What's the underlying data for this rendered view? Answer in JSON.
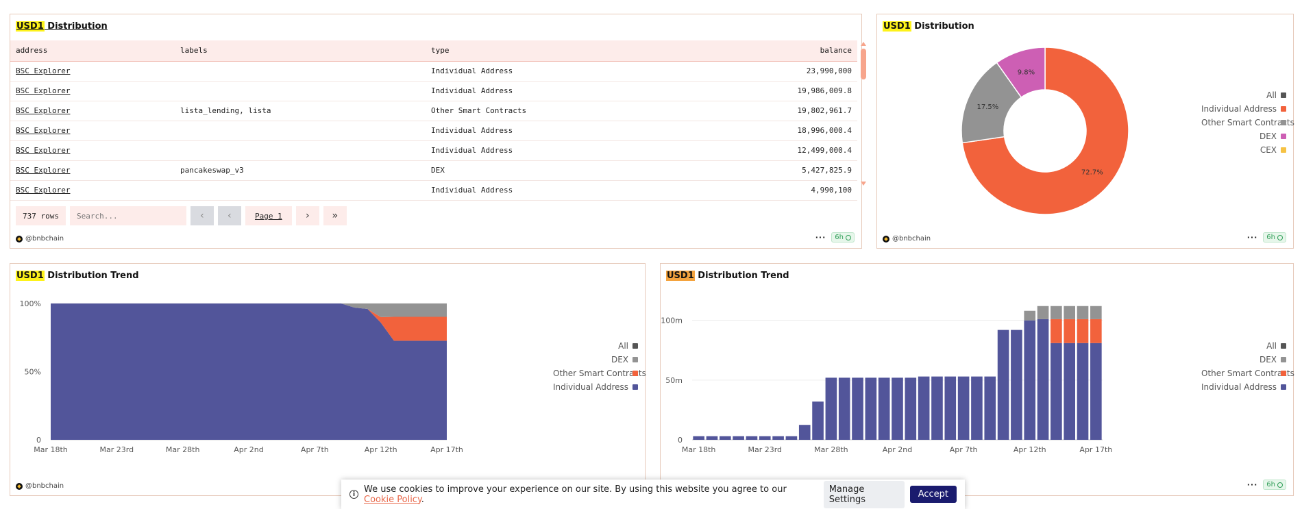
{
  "panels": {
    "table_panel": {
      "title_hl": "USD1",
      "title_rest": " Distribution",
      "columns": [
        "address",
        "labels",
        "type",
        "balance"
      ],
      "rows": [
        {
          "address": "BSC Explorer",
          "labels": "",
          "type": "Individual Address",
          "balance": "23,990,000"
        },
        {
          "address": "BSC Explorer",
          "labels": "",
          "type": "Individual Address",
          "balance": "19,986,009.8"
        },
        {
          "address": "BSC Explorer",
          "labels": "lista_lending, lista",
          "type": "Other Smart Contracts",
          "balance": "19,802,961.7"
        },
        {
          "address": "BSC Explorer",
          "labels": "",
          "type": "Individual Address",
          "balance": "18,996,000.4"
        },
        {
          "address": "BSC Explorer",
          "labels": "",
          "type": "Individual Address",
          "balance": "12,499,000.4"
        },
        {
          "address": "BSC Explorer",
          "labels": "pancakeswap_v3",
          "type": "DEX",
          "balance": "5,427,825.9"
        },
        {
          "address": "BSC Explorer",
          "labels": "",
          "type": "Individual Address",
          "balance": "4,990,100"
        }
      ],
      "row_count": "737 rows",
      "search_placeholder": "Search...",
      "page_label": "Page 1",
      "user": "@bnbchain",
      "age": "6h"
    },
    "pie_panel": {
      "title_hl": "USD1",
      "title_rest": " Distribution",
      "user": "@bnbchain",
      "age": "6h"
    },
    "area_panel": {
      "title_hl": "USD1",
      "title_rest": " Distribution Trend",
      "user": "@bnbchain"
    },
    "bar_panel": {
      "title_hl": "USD1",
      "title_rest": " Distribution Trend",
      "age": "6h"
    }
  },
  "chart_data": [
    {
      "type": "pie",
      "labels": [
        "Individual Address",
        "Other Smart Contracts",
        "DEX",
        "CEX"
      ],
      "values": [
        72.7,
        17.5,
        9.8,
        0
      ],
      "slice_labels": [
        "72.7%",
        "17.5%",
        "9.8%",
        ""
      ],
      "colors": [
        "#f2623c",
        "#939393",
        "#cd5fb4",
        "#f6c244"
      ],
      "legend": [
        {
          "label": "All",
          "color": "#555555"
        },
        {
          "label": "Individual Address",
          "color": "#f2623c"
        },
        {
          "label": "Other Smart Contracts",
          "color": "#939393"
        },
        {
          "label": "DEX",
          "color": "#cd5fb4"
        },
        {
          "label": "CEX",
          "color": "#f6c244"
        }
      ],
      "legend_position": "right"
    },
    {
      "type": "area",
      "stacked_percent": true,
      "x": [
        "Mar 18",
        "Mar 19",
        "Mar 20",
        "Mar 21",
        "Mar 22",
        "Mar 23",
        "Mar 24",
        "Mar 25",
        "Mar 26",
        "Mar 27",
        "Mar 28",
        "Mar 29",
        "Mar 30",
        "Mar 31",
        "Apr 1",
        "Apr 2",
        "Apr 3",
        "Apr 4",
        "Apr 5",
        "Apr 6",
        "Apr 7",
        "Apr 8",
        "Apr 9",
        "Apr 10",
        "Apr 11",
        "Apr 12",
        "Apr 13",
        "Apr 14",
        "Apr 15",
        "Apr 16",
        "Apr 17"
      ],
      "x_tick_labels": [
        "Mar 18th",
        "Mar 23rd",
        "Mar 28th",
        "Apr 2nd",
        "Apr 7th",
        "Apr 12th",
        "Apr 17th"
      ],
      "x_tick_index": [
        0,
        5,
        10,
        15,
        20,
        25,
        30
      ],
      "series": [
        {
          "name": "Individual Address",
          "color": "#52559a",
          "values": [
            100,
            100,
            100,
            100,
            100,
            100,
            100,
            100,
            100,
            100,
            100,
            100,
            100,
            100,
            100,
            100,
            100,
            100,
            100,
            100,
            100,
            100,
            100,
            97,
            96,
            86,
            72.7,
            72.7,
            72.7,
            72.7,
            72.7
          ]
        },
        {
          "name": "Other Smart Contracts",
          "color": "#f2623c",
          "values": [
            0,
            0,
            0,
            0,
            0,
            0,
            0,
            0,
            0,
            0,
            0,
            0,
            0,
            0,
            0,
            0,
            0,
            0,
            0,
            0,
            0,
            0,
            0,
            0,
            0,
            4,
            17.5,
            17.5,
            17.5,
            17.5,
            17.5
          ]
        },
        {
          "name": "DEX",
          "color": "#939393",
          "values": [
            0,
            0,
            0,
            0,
            0,
            0,
            0,
            0,
            0,
            0,
            0,
            0,
            0,
            0,
            0,
            0,
            0,
            0,
            0,
            0,
            0,
            0,
            0,
            3,
            4,
            10,
            9.8,
            9.8,
            9.8,
            9.8,
            9.8
          ]
        }
      ],
      "y_ticks": [
        "0",
        "50%",
        "100%"
      ],
      "ylim": [
        0,
        100
      ],
      "legend": [
        {
          "label": "All",
          "color": "#555555"
        },
        {
          "label": "DEX",
          "color": "#939393"
        },
        {
          "label": "Other Smart Contracts",
          "color": "#f2623c"
        },
        {
          "label": "Individual Address",
          "color": "#52559a"
        }
      ],
      "legend_position": "right"
    },
    {
      "type": "bar",
      "stacked": true,
      "x": [
        "Mar 18",
        "Mar 19",
        "Mar 20",
        "Mar 21",
        "Mar 22",
        "Mar 23",
        "Mar 24",
        "Mar 25",
        "Mar 26",
        "Mar 27",
        "Mar 28",
        "Mar 29",
        "Mar 30",
        "Mar 31",
        "Apr 1",
        "Apr 2",
        "Apr 3",
        "Apr 4",
        "Apr 5",
        "Apr 6",
        "Apr 7",
        "Apr 8",
        "Apr 9",
        "Apr 10",
        "Apr 11",
        "Apr 12",
        "Apr 13",
        "Apr 14",
        "Apr 15",
        "Apr 16",
        "Apr 17"
      ],
      "x_tick_labels": [
        "Mar 18th",
        "Mar 23rd",
        "Mar 28th",
        "Apr 2nd",
        "Apr 7th",
        "Apr 12th",
        "Apr 17th"
      ],
      "x_tick_index": [
        0,
        5,
        10,
        15,
        20,
        25,
        30
      ],
      "series": [
        {
          "name": "Individual Address",
          "color": "#52559a",
          "values": [
            3,
            3,
            3,
            3,
            3,
            3,
            3,
            3,
            12.5,
            32,
            52,
            52,
            52,
            52,
            52,
            52,
            52,
            53,
            53,
            53,
            53,
            53,
            53,
            92,
            92,
            100,
            101,
            81,
            81,
            81,
            81
          ]
        },
        {
          "name": "Other Smart Contracts",
          "color": "#f2623c",
          "values": [
            0,
            0,
            0,
            0,
            0,
            0,
            0,
            0,
            0,
            0,
            0,
            0,
            0,
            0,
            0,
            0,
            0,
            0,
            0,
            0,
            0,
            0,
            0,
            0,
            0,
            0,
            0,
            20,
            20,
            20,
            20
          ]
        },
        {
          "name": "DEX",
          "color": "#939393",
          "values": [
            0,
            0,
            0,
            0,
            0,
            0,
            0,
            0,
            0,
            0,
            0,
            0,
            0,
            0,
            0,
            0,
            0,
            0,
            0,
            0,
            0,
            0,
            0,
            0,
            0,
            8,
            11,
            11,
            11,
            11,
            11
          ]
        }
      ],
      "y_ticks": [
        "0",
        "50m",
        "100m"
      ],
      "ylim": [
        0,
        113
      ],
      "legend": [
        {
          "label": "All",
          "color": "#555555"
        },
        {
          "label": "DEX",
          "color": "#939393"
        },
        {
          "label": "Other Smart Contracts",
          "color": "#f2623c"
        },
        {
          "label": "Individual Address",
          "color": "#52559a"
        }
      ],
      "legend_position": "right"
    }
  ],
  "cookie": {
    "text": "We use cookies to improve your experience on our site. By using this website you agree to our",
    "link": "Cookie Policy",
    "period": ".",
    "manage": "Manage Settings",
    "accept": "Accept"
  }
}
